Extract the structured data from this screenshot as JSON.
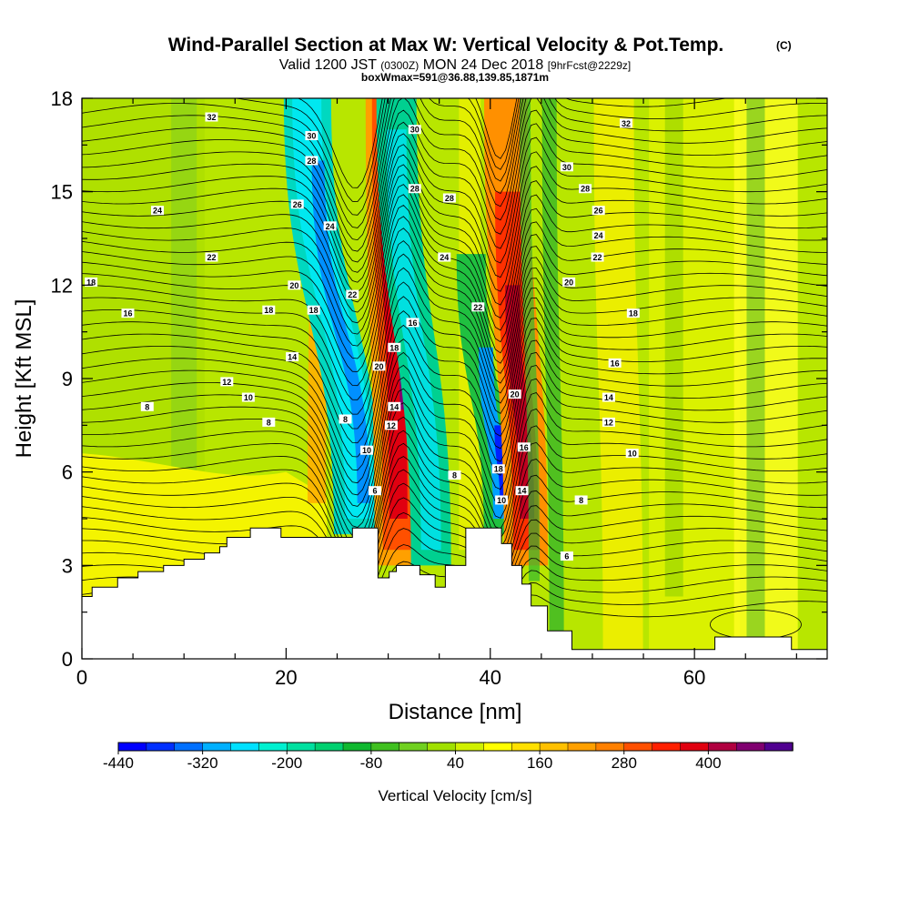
{
  "chart_data": {
    "type": "heatmap",
    "title": "Wind-Parallel Section at Max W: Vertical Velocity & Pot.Temp.",
    "title_units": "(C)",
    "subtitle_a": "Valid 1200 JST",
    "subtitle_b": "(0300Z)",
    "subtitle_c": "MON 24 Dec 2018",
    "subtitle_d": "[9hrFcst@2229z]",
    "subtitle2": "boxWmax=591@36.88,139.85,1871m",
    "xlabel": "Distance [nm]",
    "ylabel": "Height [Kft MSL]",
    "xlim": [
      0,
      73
    ],
    "ylim": [
      0,
      18
    ],
    "x_ticks": [
      "0",
      "20",
      "40",
      "60"
    ],
    "y_ticks": [
      "0",
      "3",
      "6",
      "9",
      "12",
      "15",
      "18"
    ],
    "colorbar": {
      "label": "Vertical Velocity [cm/s]",
      "tick_labels": [
        "-440",
        "-320",
        "-200",
        "-80",
        "40",
        "160",
        "280",
        "400"
      ],
      "colors": [
        "#0000ff",
        "#0030ff",
        "#0070ff",
        "#00b0ff",
        "#00e0ff",
        "#00f0d0",
        "#00e0a0",
        "#00d070",
        "#10b830",
        "#40c020",
        "#70d020",
        "#a0e000",
        "#d0f000",
        "#ffff00",
        "#ffe000",
        "#ffc000",
        "#ffa000",
        "#ff8000",
        "#ff5000",
        "#ff2000",
        "#e00010",
        "#b00040",
        "#800070",
        "#500090"
      ]
    },
    "velocity_bands": [
      {
        "x": 25.8,
        "note": "downdraft",
        "peak": -250
      },
      {
        "x": 30.8,
        "note": "updraft",
        "peak": 400
      },
      {
        "x": 34.3,
        "note": "downdraft",
        "peak": -200
      },
      {
        "x": 40.8,
        "note": "downdraft",
        "peak": -300
      },
      {
        "x": 43.5,
        "note": "updraft",
        "peak": 400
      }
    ],
    "contour_labels": [
      {
        "x": 12.7,
        "y": 17.4,
        "text": "32"
      },
      {
        "x": 22.5,
        "y": 16.8,
        "text": "30"
      },
      {
        "x": 22.5,
        "y": 16.0,
        "text": "28"
      },
      {
        "x": 21.1,
        "y": 14.6,
        "text": "26"
      },
      {
        "x": 7.4,
        "y": 14.4,
        "text": "24"
      },
      {
        "x": 24.3,
        "y": 13.9,
        "text": "24"
      },
      {
        "x": 12.7,
        "y": 12.9,
        "text": "22"
      },
      {
        "x": 20.8,
        "y": 12.0,
        "text": "20"
      },
      {
        "x": 0.9,
        "y": 12.1,
        "text": "18"
      },
      {
        "x": 4.5,
        "y": 11.1,
        "text": "16"
      },
      {
        "x": 18.3,
        "y": 11.2,
        "text": "18"
      },
      {
        "x": 22.7,
        "y": 11.2,
        "text": "18"
      },
      {
        "x": 20.6,
        "y": 9.7,
        "text": "14"
      },
      {
        "x": 14.2,
        "y": 8.9,
        "text": "12"
      },
      {
        "x": 16.3,
        "y": 8.4,
        "text": "10"
      },
      {
        "x": 6.4,
        "y": 8.1,
        "text": "8"
      },
      {
        "x": 18.3,
        "y": 7.6,
        "text": "8"
      },
      {
        "x": 32.6,
        "y": 17.0,
        "text": "30"
      },
      {
        "x": 32.6,
        "y": 15.1,
        "text": "28"
      },
      {
        "x": 36.0,
        "y": 14.8,
        "text": "28"
      },
      {
        "x": 26.5,
        "y": 11.7,
        "text": "22"
      },
      {
        "x": 32.4,
        "y": 10.8,
        "text": "16"
      },
      {
        "x": 30.6,
        "y": 10.0,
        "text": "18"
      },
      {
        "x": 29.1,
        "y": 9.4,
        "text": "20"
      },
      {
        "x": 30.6,
        "y": 8.1,
        "text": "14"
      },
      {
        "x": 30.3,
        "y": 7.5,
        "text": "12"
      },
      {
        "x": 25.8,
        "y": 7.7,
        "text": "8"
      },
      {
        "x": 27.9,
        "y": 6.7,
        "text": "10"
      },
      {
        "x": 28.7,
        "y": 5.4,
        "text": "6"
      },
      {
        "x": 35.5,
        "y": 12.9,
        "text": "24"
      },
      {
        "x": 38.8,
        "y": 11.3,
        "text": "22"
      },
      {
        "x": 42.4,
        "y": 8.5,
        "text": "20"
      },
      {
        "x": 40.8,
        "y": 6.1,
        "text": "18"
      },
      {
        "x": 43.3,
        "y": 6.8,
        "text": "16"
      },
      {
        "x": 43.1,
        "y": 5.4,
        "text": "14"
      },
      {
        "x": 41.1,
        "y": 5.1,
        "text": "10"
      },
      {
        "x": 36.5,
        "y": 5.9,
        "text": "8"
      },
      {
        "x": 47.5,
        "y": 15.8,
        "text": "30"
      },
      {
        "x": 53.3,
        "y": 17.2,
        "text": "32"
      },
      {
        "x": 49.3,
        "y": 15.1,
        "text": "28"
      },
      {
        "x": 50.6,
        "y": 14.4,
        "text": "26"
      },
      {
        "x": 50.6,
        "y": 13.6,
        "text": "24"
      },
      {
        "x": 50.5,
        "y": 12.9,
        "text": "22"
      },
      {
        "x": 47.7,
        "y": 12.1,
        "text": "20"
      },
      {
        "x": 54.0,
        "y": 11.1,
        "text": "18"
      },
      {
        "x": 52.2,
        "y": 9.5,
        "text": "16"
      },
      {
        "x": 51.6,
        "y": 8.4,
        "text": "14"
      },
      {
        "x": 51.6,
        "y": 7.6,
        "text": "12"
      },
      {
        "x": 53.9,
        "y": 6.6,
        "text": "10"
      },
      {
        "x": 48.9,
        "y": 5.1,
        "text": "8"
      },
      {
        "x": 47.5,
        "y": 3.3,
        "text": "6"
      }
    ],
    "terrain_height_kft": [
      {
        "x": 0.0,
        "y": 2.0
      },
      {
        "x": 1.0,
        "y": 2.3
      },
      {
        "x": 3.5,
        "y": 2.6
      },
      {
        "x": 5.5,
        "y": 2.8
      },
      {
        "x": 8.0,
        "y": 3.0
      },
      {
        "x": 10.0,
        "y": 3.2
      },
      {
        "x": 12.0,
        "y": 3.4
      },
      {
        "x": 13.5,
        "y": 3.6
      },
      {
        "x": 14.2,
        "y": 3.9
      },
      {
        "x": 16.5,
        "y": 4.2
      },
      {
        "x": 19.5,
        "y": 3.9
      },
      {
        "x": 25.5,
        "y": 3.9
      },
      {
        "x": 26.5,
        "y": 4.2
      },
      {
        "x": 29.0,
        "y": 4.2
      },
      {
        "x": 29.0,
        "y": 2.6
      },
      {
        "x": 30.1,
        "y": 2.8
      },
      {
        "x": 30.8,
        "y": 3.0
      },
      {
        "x": 33.1,
        "y": 2.7
      },
      {
        "x": 34.6,
        "y": 2.3
      },
      {
        "x": 35.6,
        "y": 3.0
      },
      {
        "x": 37.6,
        "y": 4.2
      },
      {
        "x": 40.5,
        "y": 4.2
      },
      {
        "x": 41.1,
        "y": 3.7
      },
      {
        "x": 42.1,
        "y": 3.0
      },
      {
        "x": 43.1,
        "y": 2.4
      },
      {
        "x": 44.0,
        "y": 1.7
      },
      {
        "x": 45.6,
        "y": 0.9
      },
      {
        "x": 48.0,
        "y": 0.3
      },
      {
        "x": 60.5,
        "y": 0.3
      },
      {
        "x": 62.0,
        "y": 0.7
      },
      {
        "x": 69.0,
        "y": 0.7
      },
      {
        "x": 69.5,
        "y": 0.3
      },
      {
        "x": 73.0,
        "y": 0.3
      }
    ]
  }
}
